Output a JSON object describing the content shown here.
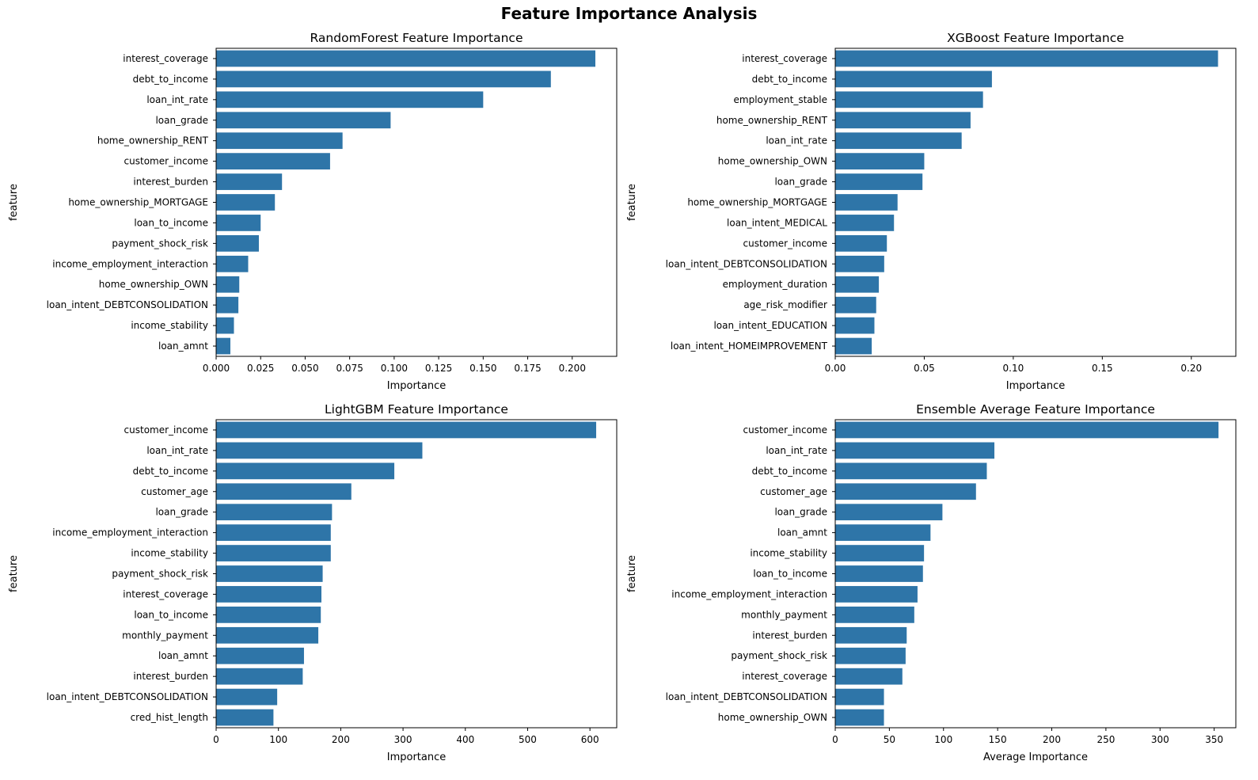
{
  "figure": {
    "title": "Feature Importance Analysis"
  },
  "colors": {
    "bar": "#2e75a8",
    "axis": "#000000",
    "background": "#ffffff"
  },
  "chart_data": [
    {
      "type": "bar",
      "orientation": "horizontal",
      "title": "RandomForest Feature Importance",
      "xlabel": "Importance",
      "ylabel": "feature",
      "xlim": [
        0,
        0.225
      ],
      "xticks": [
        0.0,
        0.025,
        0.05,
        0.075,
        0.1,
        0.125,
        0.15,
        0.175,
        0.2
      ],
      "xtick_labels": [
        "0.000",
        "0.025",
        "0.050",
        "0.075",
        "0.100",
        "0.125",
        "0.150",
        "0.175",
        "0.200"
      ],
      "categories": [
        "interest_coverage",
        "debt_to_income",
        "loan_int_rate",
        "loan_grade",
        "home_ownership_RENT",
        "customer_income",
        "interest_burden",
        "home_ownership_MORTGAGE",
        "loan_to_income",
        "payment_shock_risk",
        "income_employment_interaction",
        "home_ownership_OWN",
        "loan_intent_DEBTCONSOLIDATION",
        "income_stability",
        "loan_amnt"
      ],
      "values": [
        0.213,
        0.188,
        0.15,
        0.098,
        0.071,
        0.064,
        0.037,
        0.033,
        0.025,
        0.024,
        0.018,
        0.013,
        0.0125,
        0.01,
        0.008
      ]
    },
    {
      "type": "bar",
      "orientation": "horizontal",
      "title": "XGBoost Feature Importance",
      "xlabel": "Importance",
      "ylabel": "feature",
      "xlim": [
        0,
        0.225
      ],
      "xticks": [
        0.0,
        0.05,
        0.1,
        0.15,
        0.2
      ],
      "xtick_labels": [
        "0.00",
        "0.05",
        "0.10",
        "0.15",
        "0.20"
      ],
      "categories": [
        "interest_coverage",
        "debt_to_income",
        "employment_stable",
        "home_ownership_RENT",
        "loan_int_rate",
        "home_ownership_OWN",
        "loan_grade",
        "home_ownership_MORTGAGE",
        "loan_intent_MEDICAL",
        "customer_income",
        "loan_intent_DEBTCONSOLIDATION",
        "employment_duration",
        "age_risk_modifier",
        "loan_intent_EDUCATION",
        "loan_intent_HOMEIMPROVEMENT"
      ],
      "values": [
        0.215,
        0.088,
        0.083,
        0.076,
        0.071,
        0.05,
        0.049,
        0.035,
        0.033,
        0.029,
        0.0275,
        0.0245,
        0.023,
        0.022,
        0.0205
      ]
    },
    {
      "type": "bar",
      "orientation": "horizontal",
      "title": "LightGBM Feature Importance",
      "xlabel": "Importance",
      "ylabel": "feature",
      "xlim": [
        0,
        643
      ],
      "xticks": [
        0,
        100,
        200,
        300,
        400,
        500,
        600
      ],
      "xtick_labels": [
        "0",
        "100",
        "200",
        "300",
        "400",
        "500",
        "600"
      ],
      "categories": [
        "customer_income",
        "loan_int_rate",
        "debt_to_income",
        "customer_age",
        "loan_grade",
        "income_employment_interaction",
        "income_stability",
        "payment_shock_risk",
        "interest_coverage",
        "loan_to_income",
        "monthly_payment",
        "loan_amnt",
        "interest_burden",
        "loan_intent_DEBTCONSOLIDATION",
        "cred_hist_length"
      ],
      "values": [
        610,
        331,
        286,
        217,
        186,
        184,
        184,
        171,
        169,
        168,
        164,
        141,
        139,
        98,
        92
      ]
    },
    {
      "type": "bar",
      "orientation": "horizontal",
      "title": "Ensemble Average Feature Importance",
      "xlabel": "Average Importance",
      "ylabel": "feature",
      "xlim": [
        0,
        370
      ],
      "xticks": [
        0,
        50,
        100,
        150,
        200,
        250,
        300,
        350
      ],
      "xtick_labels": [
        "0",
        "50",
        "100",
        "150",
        "200",
        "250",
        "300",
        "350"
      ],
      "categories": [
        "customer_income",
        "loan_int_rate",
        "debt_to_income",
        "customer_age",
        "loan_grade",
        "loan_amnt",
        "income_stability",
        "loan_to_income",
        "income_employment_interaction",
        "monthly_payment",
        "interest_burden",
        "payment_shock_risk",
        "interest_coverage",
        "loan_intent_DEBTCONSOLIDATION",
        "home_ownership_OWN"
      ],
      "values": [
        354,
        147,
        140,
        130,
        99,
        88,
        82,
        81,
        76,
        73,
        66,
        65,
        62,
        45,
        45
      ]
    }
  ]
}
